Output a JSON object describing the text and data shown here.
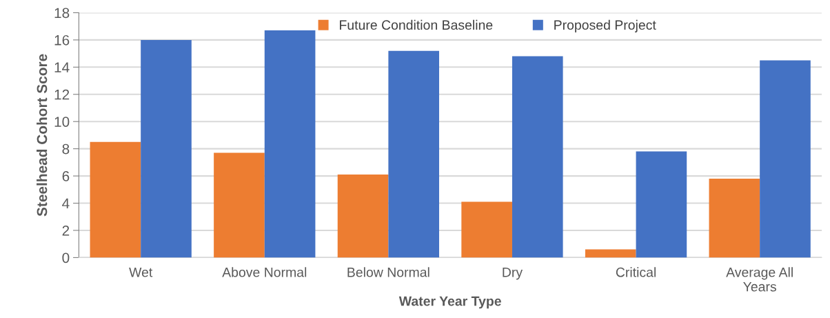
{
  "chart_data": {
    "type": "bar",
    "categories": [
      "Wet",
      "Above Normal",
      "Below Normal",
      "Dry",
      "Critical",
      "Average All\nYears"
    ],
    "series": [
      {
        "name": "Future Condition Baseline",
        "color": "#ed7d31",
        "values": [
          8.5,
          7.7,
          6.1,
          4.1,
          0.6,
          5.8
        ]
      },
      {
        "name": "Proposed Project",
        "color": "#4472c4",
        "values": [
          16.0,
          16.7,
          15.2,
          14.8,
          7.8,
          14.5
        ]
      }
    ],
    "xlabel": "Water Year Type",
    "ylabel": "Steelhead Cohort Score",
    "ylim": [
      0,
      18
    ],
    "yticks": [
      0,
      2,
      4,
      6,
      8,
      10,
      12,
      14,
      16,
      18
    ],
    "grid": "y",
    "legend": "top"
  }
}
